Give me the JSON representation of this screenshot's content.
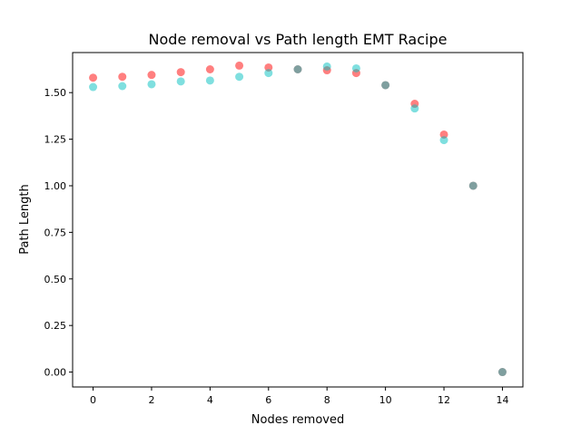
{
  "chart_data": {
    "type": "scatter",
    "title": "Node removal vs Path length EMT Racipe",
    "xlabel": "Nodes removed",
    "ylabel": "Path Length",
    "xlim": [
      -0.7,
      14.7
    ],
    "ylim": [
      -0.08,
      1.715
    ],
    "xticks": [
      0,
      2,
      4,
      6,
      8,
      10,
      12,
      14
    ],
    "yticks": [
      0.0,
      0.25,
      0.5,
      0.75,
      1.0,
      1.25,
      1.5
    ],
    "xtick_labels": [
      "0",
      "2",
      "4",
      "6",
      "8",
      "10",
      "12",
      "14"
    ],
    "ytick_labels": [
      "0.00",
      "0.25",
      "0.50",
      "0.75",
      "1.00",
      "1.25",
      "1.50"
    ],
    "grid": false,
    "legend": false,
    "series": [
      {
        "color": "#ff0000",
        "alpha": 0.5,
        "x": [
          0,
          1,
          2,
          3,
          4,
          5,
          6,
          7,
          8,
          9,
          10,
          11,
          12,
          13,
          14
        ],
        "y": [
          1.58,
          1.585,
          1.595,
          1.61,
          1.625,
          1.645,
          1.635,
          1.625,
          1.62,
          1.605,
          1.54,
          1.44,
          1.275,
          1.0,
          0.0
        ]
      },
      {
        "color": "#00bfbf",
        "alpha": 0.5,
        "x": [
          0,
          1,
          2,
          3,
          4,
          5,
          6,
          7,
          8,
          9,
          10,
          11,
          12,
          13,
          14
        ],
        "y": [
          1.53,
          1.535,
          1.545,
          1.56,
          1.565,
          1.585,
          1.605,
          1.625,
          1.64,
          1.63,
          1.54,
          1.415,
          1.245,
          1.0,
          0.0
        ]
      }
    ]
  }
}
